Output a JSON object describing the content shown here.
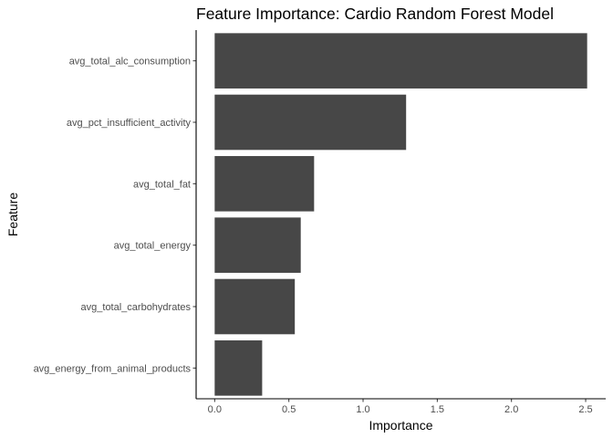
{
  "chart_data": {
    "type": "bar",
    "orientation": "horizontal",
    "title": "Feature Importance: Cardio Random Forest Model",
    "xlabel": "Importance",
    "ylabel": "Feature",
    "categories": [
      "avg_total_alc_consumption",
      "avg_pct_insufficient_activity",
      "avg_total_fat",
      "avg_total_energy",
      "avg_total_carbohydrates",
      "avg_energy_from_animal_products"
    ],
    "values": [
      2.51,
      1.29,
      0.67,
      0.58,
      0.54,
      0.32
    ],
    "xlim": [
      -0.125,
      2.635
    ],
    "xticks": [
      0.0,
      0.5,
      1.0,
      1.5,
      2.0,
      2.5
    ],
    "xtick_labels": [
      "0.0",
      "0.5",
      "1.0",
      "1.5",
      "2.0",
      "2.5"
    ],
    "grid": false,
    "bar_color": "#474747"
  }
}
